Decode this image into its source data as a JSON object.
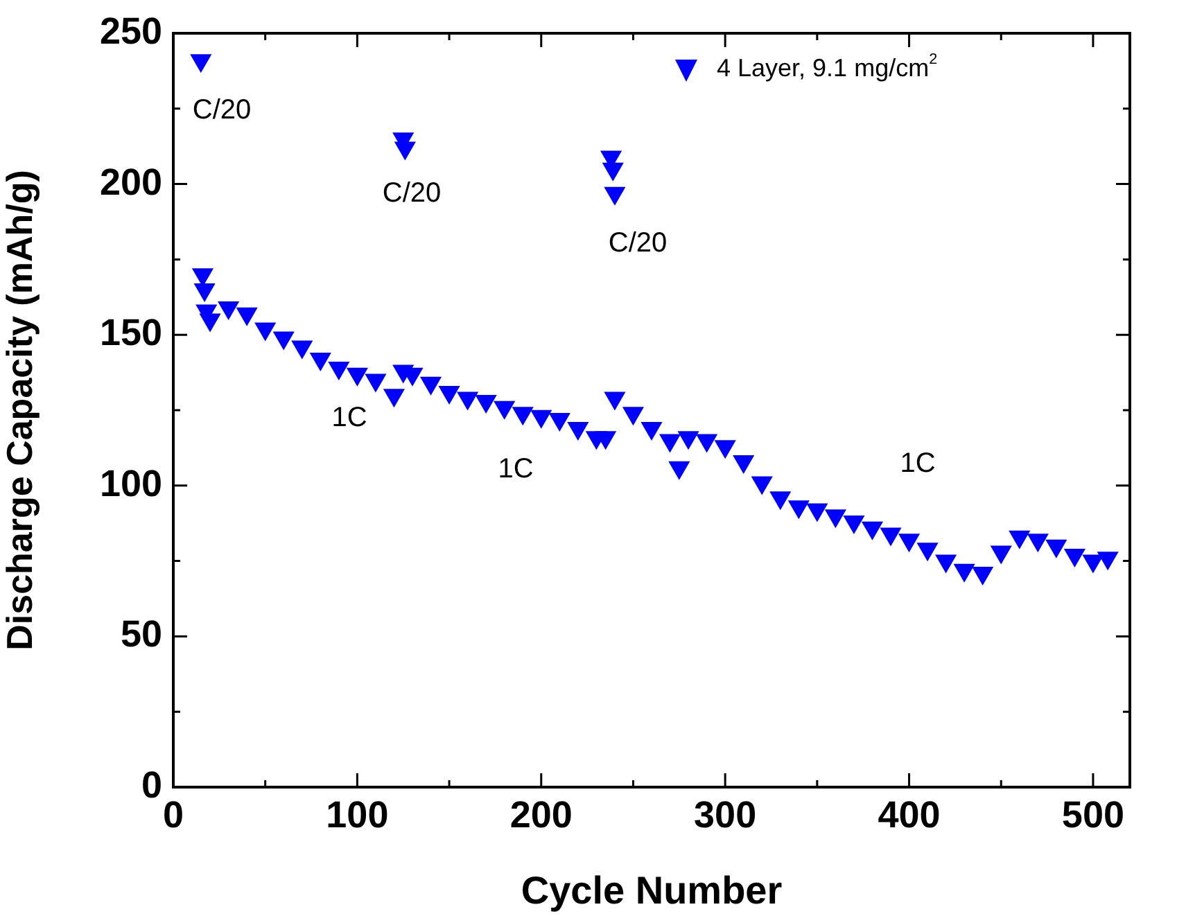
{
  "chart_data": {
    "type": "scatter",
    "xlabel": "Cycle Number",
    "ylabel": "Discharge Capacity (mAh/g)",
    "series": [
      {
        "name": "4 Layer, 9.1 mg/cm$^{2}$",
        "color": "#0000ff",
        "x": [
          15,
          125,
          126,
          238,
          239,
          240,
          16,
          17,
          18,
          20,
          30,
          40,
          50,
          60,
          70,
          80,
          90,
          100,
          110,
          120,
          125,
          130,
          140,
          150,
          160,
          170,
          180,
          190,
          200,
          210,
          220,
          230,
          235,
          240,
          250,
          260,
          270,
          275,
          280,
          290,
          300,
          310,
          320,
          330,
          340,
          350,
          360,
          370,
          380,
          390,
          400,
          410,
          420,
          430,
          440,
          450,
          460,
          470,
          480,
          490,
          500,
          508
        ],
        "values": [
          241,
          215,
          212,
          209,
          205,
          197,
          170,
          165,
          158,
          155,
          159,
          157,
          152,
          149,
          146,
          142,
          139,
          137,
          135,
          130,
          138,
          137,
          134,
          131,
          129,
          128,
          126,
          124,
          123,
          122,
          119,
          116,
          116,
          129,
          124,
          119,
          115,
          106,
          116,
          115,
          113,
          108,
          101,
          96,
          93,
          92,
          90,
          88,
          86,
          84,
          82,
          79,
          75,
          72,
          71,
          78,
          83,
          82,
          80,
          77,
          75,
          76
        ]
      }
    ],
    "xlim": [
      0,
      520
    ],
    "xticks": [
      0,
      {
        "value": 50,
        "label": null
      },
      100,
      {
        "value": 150,
        "label": null
      },
      200,
      {
        "value": 250,
        "label": null
      },
      300,
      {
        "value": 350,
        "label": null
      },
      400,
      {
        "value": 450,
        "label": null
      },
      500
    ],
    "ylim": [
      0,
      250
    ],
    "yticks": [
      0,
      {
        "value": 25,
        "label": null
      },
      50,
      {
        "value": 75,
        "label": null
      },
      100,
      {
        "value": 125,
        "label": null
      },
      150,
      {
        "value": 175,
        "label": null
      },
      200,
      {
        "value": 225,
        "label": null
      },
      250
    ],
    "marker": "triangle",
    "grid": false,
    "legend": "top right",
    "annotations": [
      "C/20",
      "C/20",
      "C/20",
      "1C",
      "1C",
      "1C"
    ]
  }
}
